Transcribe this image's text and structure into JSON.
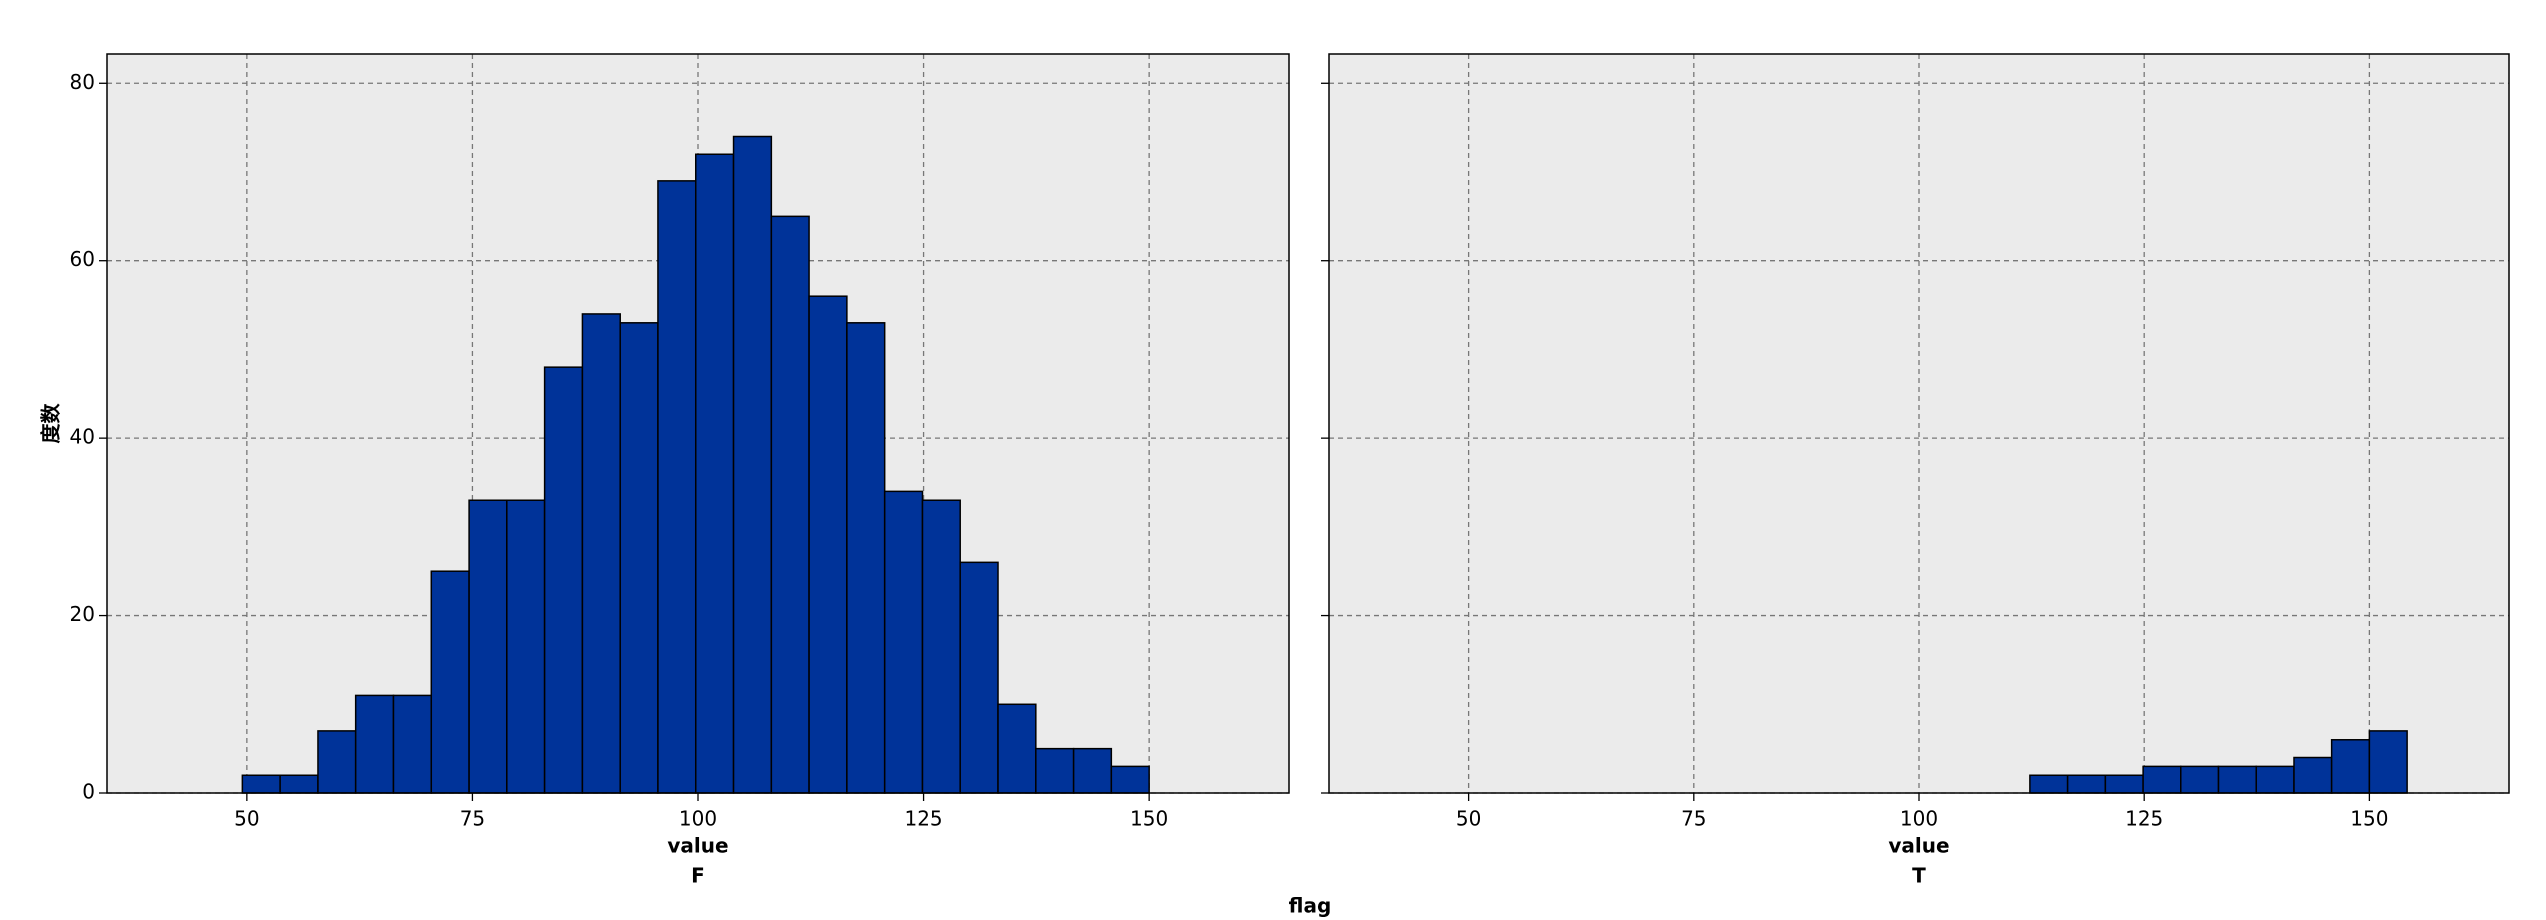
{
  "chart_data": [
    {
      "type": "histogram",
      "x_label": "value",
      "facet": "F",
      "y_label": "度数",
      "bins": [
        49.5,
        53.69,
        57.88,
        62.06,
        66.25,
        70.44,
        74.63,
        78.81,
        83,
        87.19,
        91.38,
        95.56,
        99.75,
        103.94,
        108.13,
        112.31,
        116.5,
        120.69,
        124.88,
        129.06,
        133.25,
        137.44,
        141.63,
        145.81,
        150
      ],
      "values": [
        2,
        2,
        7,
        11,
        11,
        25,
        33,
        33,
        48,
        54,
        53,
        69,
        72,
        74,
        65,
        56,
        53,
        34,
        33,
        26,
        10,
        5,
        5,
        3
      ],
      "color": "#003399",
      "xlim": [
        34.5,
        165.5
      ],
      "ylim": [
        0,
        83.3
      ],
      "xticks": [
        50,
        75,
        100,
        125,
        150
      ],
      "yticks": [
        0,
        20,
        40,
        60,
        80
      ],
      "grid": true,
      "show_y_tick_labels": true
    },
    {
      "type": "histogram",
      "x_label": "value",
      "facet": "T",
      "bins": [
        112.31,
        116.5,
        120.69,
        124.88,
        129.06,
        133.25,
        137.44,
        141.63,
        145.81,
        150,
        154.19
      ],
      "values": [
        2,
        2,
        2,
        3,
        3,
        3,
        3,
        4,
        6,
        7
      ],
      "color": "#003399",
      "xlim": [
        34.5,
        165.5
      ],
      "ylim": [
        0,
        83.3
      ],
      "xticks": [
        50,
        75,
        100,
        125,
        150
      ],
      "yticks": [
        0,
        20,
        40,
        60,
        80
      ],
      "grid": true,
      "show_y_tick_labels": false
    }
  ],
  "group_label": "flag"
}
